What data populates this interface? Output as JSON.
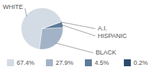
{
  "chart_data": {
    "type": "pie",
    "categories": [
      "WHITE",
      "BLACK",
      "HISPANIC",
      "A.I."
    ],
    "values": [
      67.4,
      27.9,
      4.5,
      0.2
    ],
    "value_labels": [
      "67.4%",
      "27.9%",
      "4.5%",
      "0.2%"
    ],
    "colors": [
      "#d3dbe4",
      "#a3b3c7",
      "#5d7b99",
      "#2c4c6c"
    ],
    "legend": "bottom",
    "tick_labels": false
  }
}
